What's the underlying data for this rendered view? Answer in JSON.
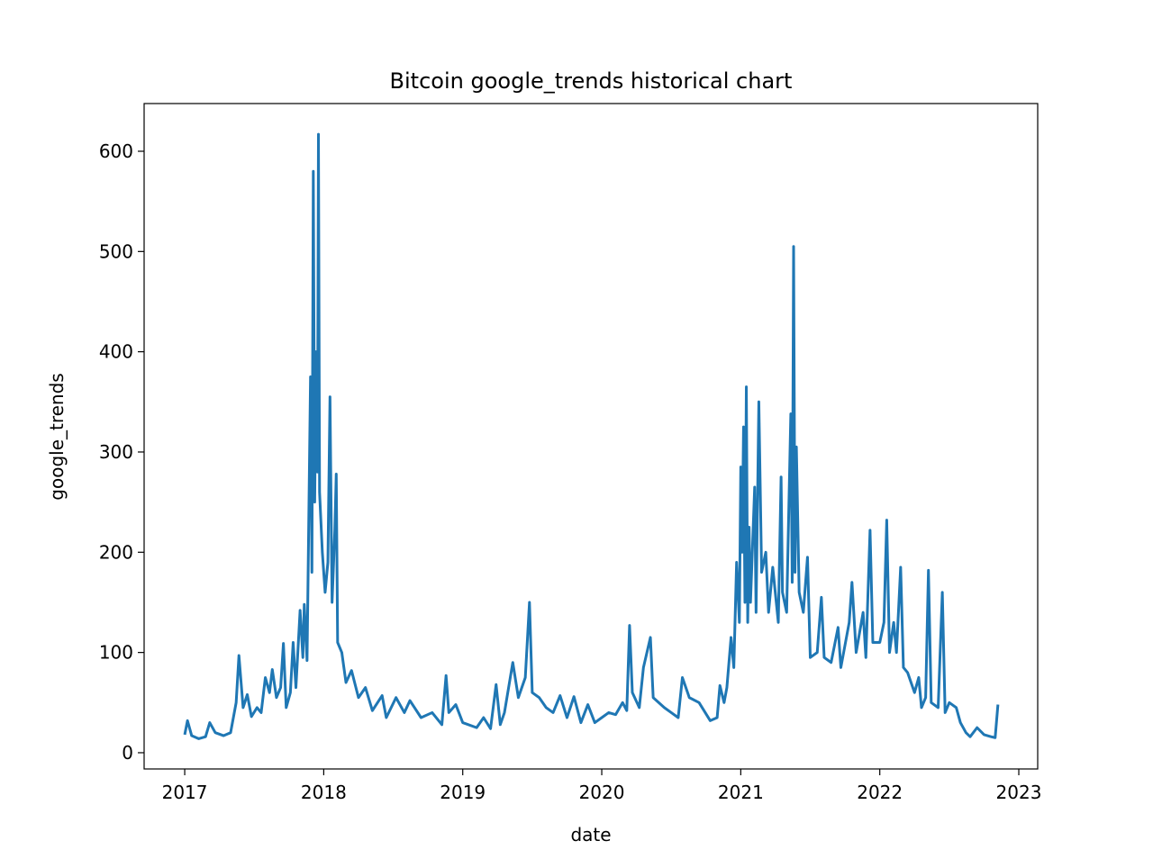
{
  "chart_data": {
    "type": "line",
    "title": "Bitcoin google_trends historical chart",
    "x_label": "date",
    "y_label": "google_trends",
    "x": [
      2017.0,
      2017.02,
      2017.05,
      2017.1,
      2017.15,
      2017.18,
      2017.22,
      2017.28,
      2017.33,
      2017.37,
      2017.39,
      2017.42,
      2017.45,
      2017.48,
      2017.52,
      2017.55,
      2017.58,
      2017.61,
      2017.63,
      2017.66,
      2017.69,
      2017.71,
      2017.73,
      2017.76,
      2017.78,
      2017.8,
      2017.83,
      2017.85,
      2017.86,
      2017.88,
      2017.905,
      2017.915,
      2017.925,
      2017.935,
      2017.945,
      2017.955,
      2017.962,
      2017.97,
      2017.99,
      2018.01,
      2018.03,
      2018.045,
      2018.06,
      2018.08,
      2018.09,
      2018.1,
      2018.13,
      2018.16,
      2018.2,
      2018.25,
      2018.3,
      2018.35,
      2018.42,
      2018.45,
      2018.52,
      2018.58,
      2018.62,
      2018.7,
      2018.78,
      2018.85,
      2018.88,
      2018.9,
      2018.95,
      2019.0,
      2019.1,
      2019.15,
      2019.2,
      2019.24,
      2019.27,
      2019.3,
      2019.36,
      2019.4,
      2019.45,
      2019.48,
      2019.5,
      2019.55,
      2019.6,
      2019.65,
      2019.7,
      2019.75,
      2019.8,
      2019.85,
      2019.9,
      2019.95,
      2020.0,
      2020.05,
      2020.1,
      2020.15,
      2020.18,
      2020.2,
      2020.22,
      2020.27,
      2020.3,
      2020.35,
      2020.37,
      2020.45,
      2020.5,
      2020.55,
      2020.58,
      2020.63,
      2020.7,
      2020.78,
      2020.83,
      2020.85,
      2020.88,
      2020.9,
      2020.93,
      2020.95,
      2020.97,
      2020.99,
      2021.0,
      2021.01,
      2021.02,
      2021.03,
      2021.04,
      2021.05,
      2021.06,
      2021.07,
      2021.1,
      2021.11,
      2021.13,
      2021.15,
      2021.18,
      2021.2,
      2021.23,
      2021.27,
      2021.29,
      2021.3,
      2021.33,
      2021.36,
      2021.37,
      2021.38,
      2021.39,
      2021.4,
      2021.42,
      2021.45,
      2021.48,
      2021.5,
      2021.55,
      2021.58,
      2021.6,
      2021.65,
      2021.7,
      2021.72,
      2021.78,
      2021.8,
      2021.83,
      2021.88,
      2021.9,
      2021.93,
      2021.95,
      2022.0,
      2022.03,
      2022.05,
      2022.07,
      2022.1,
      2022.12,
      2022.15,
      2022.17,
      2022.2,
      2022.25,
      2022.28,
      2022.3,
      2022.33,
      2022.35,
      2022.37,
      2022.42,
      2022.45,
      2022.47,
      2022.5,
      2022.55,
      2022.58,
      2022.62,
      2022.65,
      2022.7,
      2022.75,
      2022.8,
      2022.83,
      2022.85
    ],
    "series": [
      {
        "name": "google_trends",
        "color": "#1f77b4",
        "values": [
          18,
          32,
          17,
          14,
          16,
          30,
          20,
          17,
          20,
          50,
          97,
          45,
          58,
          36,
          45,
          40,
          75,
          60,
          83,
          55,
          65,
          109,
          45,
          60,
          110,
          65,
          142,
          95,
          148,
          92,
          375,
          180,
          580,
          250,
          400,
          280,
          617,
          260,
          200,
          160,
          190,
          355,
          150,
          222,
          278,
          110,
          100,
          70,
          82,
          55,
          65,
          42,
          57,
          35,
          55,
          40,
          52,
          35,
          40,
          28,
          77,
          40,
          48,
          30,
          25,
          35,
          24,
          68,
          28,
          40,
          90,
          55,
          75,
          150,
          60,
          55,
          45,
          40,
          57,
          35,
          56,
          30,
          48,
          30,
          35,
          40,
          38,
          50,
          42,
          127,
          60,
          45,
          85,
          115,
          55,
          45,
          40,
          35,
          75,
          55,
          50,
          32,
          35,
          67,
          50,
          65,
          115,
          85,
          190,
          130,
          285,
          200,
          325,
          150,
          365,
          130,
          225,
          150,
          265,
          140,
          350,
          180,
          200,
          140,
          185,
          130,
          275,
          160,
          140,
          338,
          170,
          505,
          180,
          305,
          160,
          140,
          195,
          95,
          100,
          155,
          95,
          90,
          125,
          85,
          130,
          170,
          100,
          140,
          95,
          222,
          110,
          110,
          130,
          232,
          100,
          130,
          100,
          185,
          85,
          80,
          60,
          75,
          45,
          55,
          182,
          50,
          45,
          160,
          40,
          50,
          45,
          30,
          20,
          16,
          25,
          18,
          16,
          15,
          48
        ]
      }
    ],
    "xlim": [
      2016.708,
      2023.136
    ],
    "xticks": [
      2017,
      2018,
      2019,
      2020,
      2021,
      2022,
      2023
    ],
    "ylim": [
      -16.2,
      647.6
    ],
    "yticks": [
      0,
      100,
      200,
      300,
      400,
      500,
      600
    ]
  }
}
